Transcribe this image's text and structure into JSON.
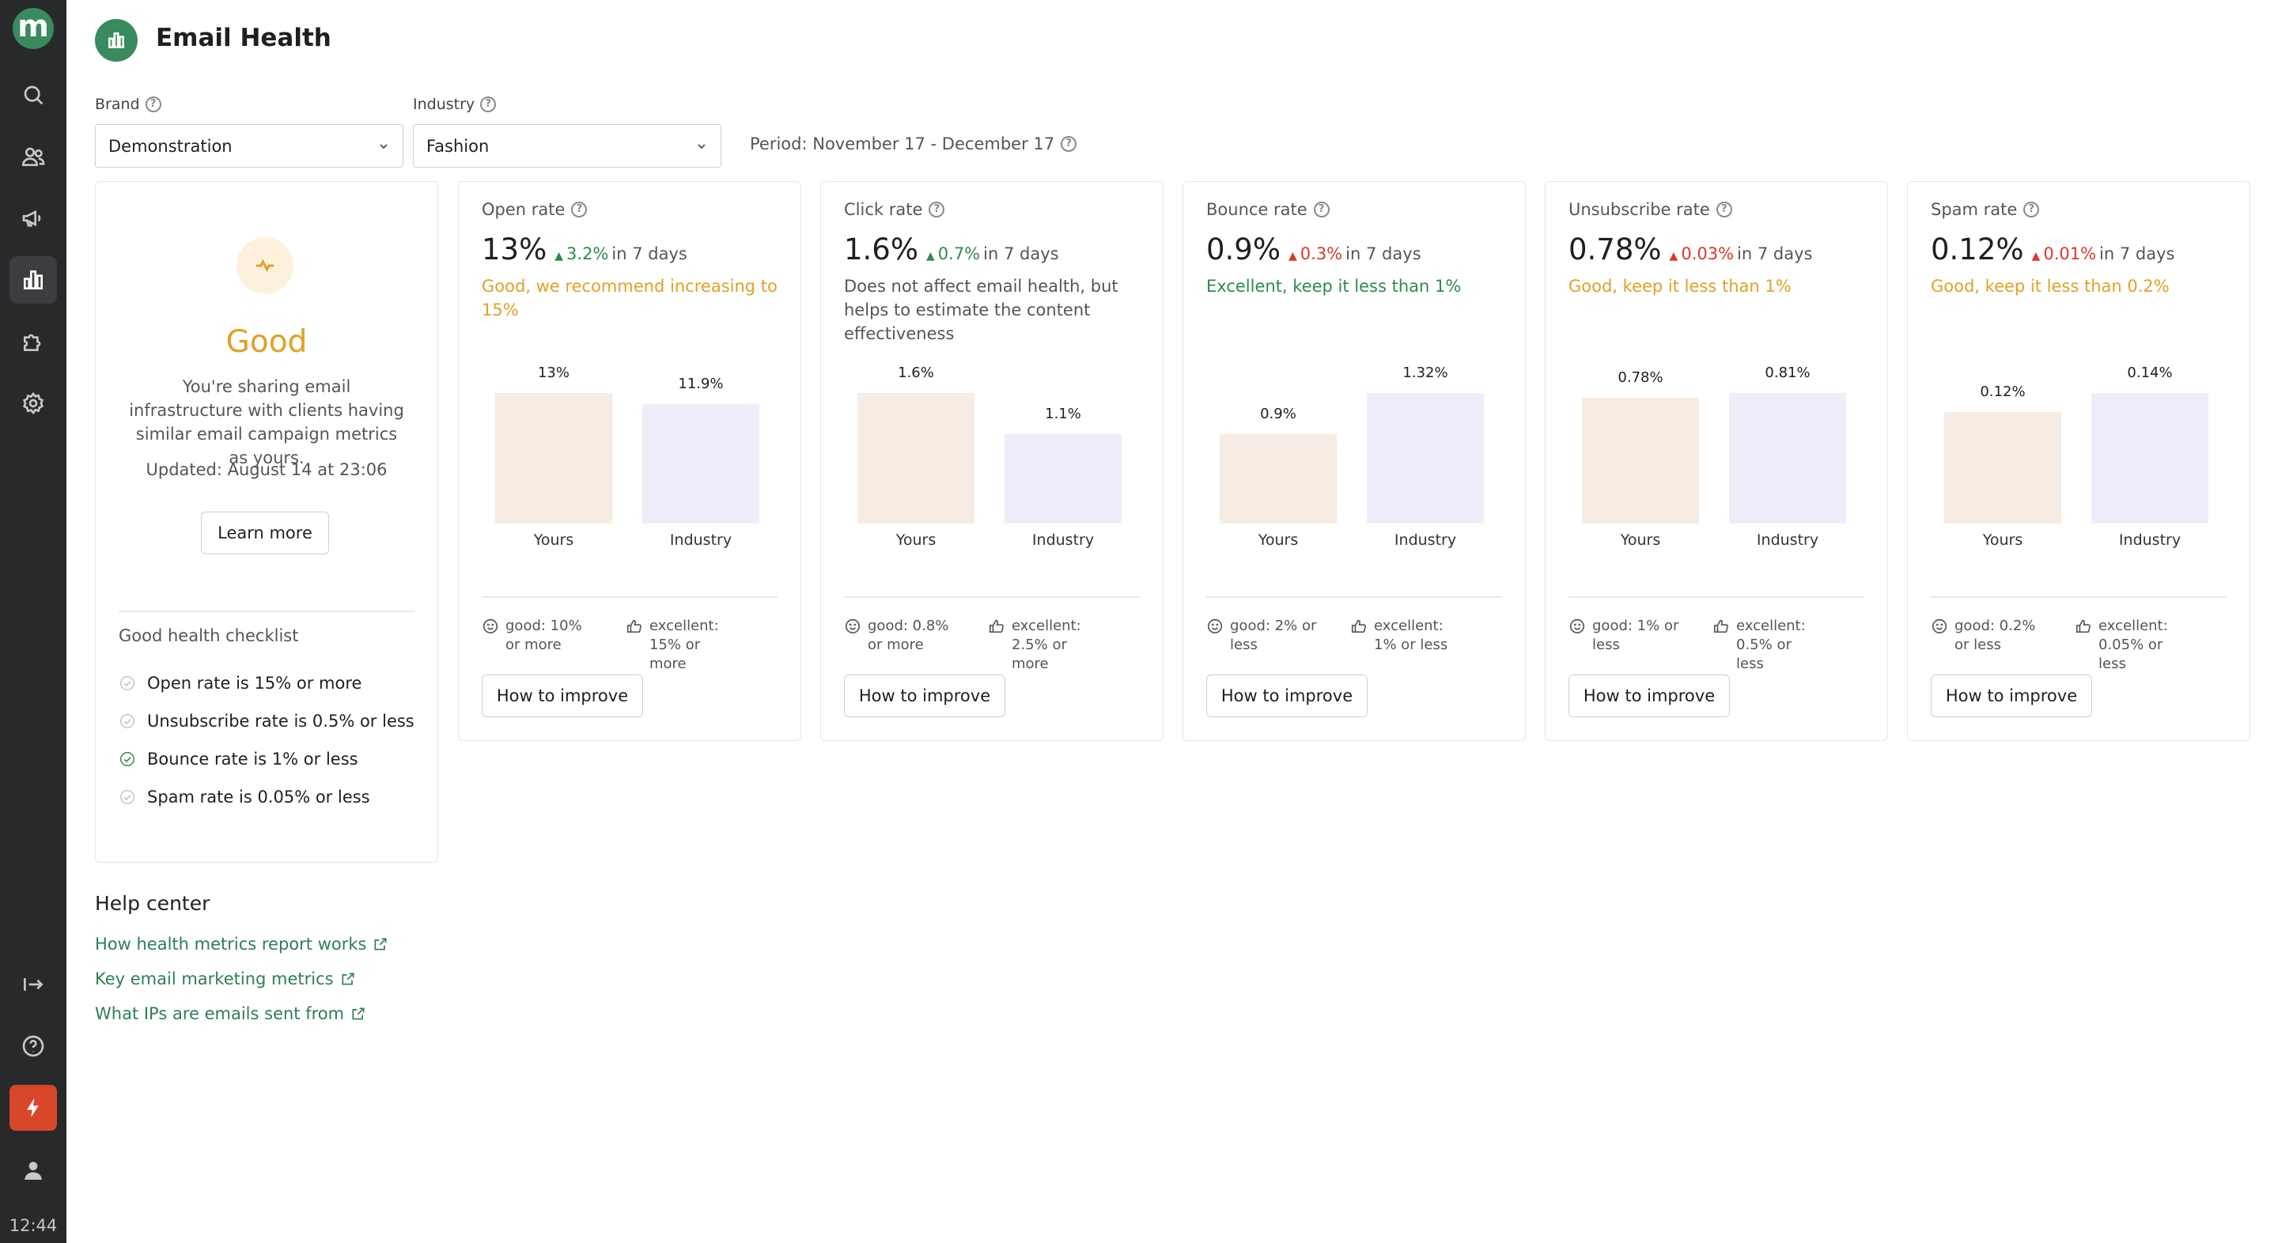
{
  "sidebar": {
    "logo_letter": "m",
    "time": "12:44"
  },
  "header": {
    "title": "Email Health"
  },
  "filters": {
    "brand_label": "Brand",
    "brand_value": "Demonstration",
    "industry_label": "Industry",
    "industry_value": "Fashion",
    "period": "Period: November 17 - December 17"
  },
  "summary": {
    "status": "Good",
    "description": "You're sharing email infrastructure with clients having similar email campaign metrics as yours.",
    "updated": "Updated: August 14 at 23:06",
    "learn_more": "Learn more",
    "checklist_title": "Good health checklist",
    "checklist": [
      {
        "label": "Open rate is 15% or more",
        "done": false
      },
      {
        "label": "Unsubscribe rate is 0.5% or less",
        "done": false
      },
      {
        "label": "Bounce rate is 1% or less",
        "done": true
      },
      {
        "label": "Spam rate is 0.05% or less",
        "done": false
      }
    ]
  },
  "metrics": [
    {
      "title": "Open rate",
      "value": "13%",
      "change": "3.2%",
      "change_direction": "up",
      "change_color": "#2e8a4d",
      "change_period": "in 7 days",
      "note": "Good, we recommend increasing to 15%",
      "note_color": "#e0a125",
      "yours": 13,
      "industry": 11.9,
      "yours_label": "13%",
      "industry_label": "11.9%",
      "good": "good: 10% or more",
      "excellent": "excellent: 15% or more"
    },
    {
      "title": "Click rate",
      "value": "1.6%",
      "change": "0.7%",
      "change_direction": "up",
      "change_color": "#2e8a4d",
      "change_period": "in 7 days",
      "note": "Does not affect email health, but helps to estimate the content effectiveness",
      "note_color": "#555555",
      "yours": 1.6,
      "industry": 1.1,
      "yours_label": "1.6%",
      "industry_label": "1.1%",
      "good": "good: 0.8% or more",
      "excellent": "excellent: 2.5% or more"
    },
    {
      "title": "Bounce rate",
      "value": "0.9%",
      "change": "0.3%",
      "change_direction": "up",
      "change_color": "#d93a2b",
      "change_period": "in 7 days",
      "note": "Excellent, keep it less than 1%",
      "note_color": "#2e8a4d",
      "yours": 0.9,
      "industry": 1.32,
      "yours_label": "0.9%",
      "industry_label": "1.32%",
      "good": "good: 2% or less",
      "excellent": "excellent: 1% or less"
    },
    {
      "title": "Unsubscribe rate",
      "value": "0.78%",
      "change": "0.03%",
      "change_direction": "up",
      "change_color": "#d93a2b",
      "change_period": "in 7 days",
      "note": "Good, keep it less than 1%",
      "note_color": "#e0a125",
      "yours": 0.78,
      "industry": 0.81,
      "yours_label": "0.78%",
      "industry_label": "0.81%",
      "good": "good: 1% or less",
      "excellent": "excellent: 0.5% or less"
    },
    {
      "title": "Spam rate",
      "value": "0.12%",
      "change": "0.01%",
      "change_direction": "up",
      "change_color": "#d93a2b",
      "change_period": "in 7 days",
      "note": "Good, keep it less than 0.2%",
      "note_color": "#e0a125",
      "yours": 0.12,
      "industry": 0.14,
      "yours_label": "0.12%",
      "industry_label": "0.14%",
      "good": "good: 0.2% or less",
      "excellent": "excellent: 0.05% or less"
    }
  ],
  "bar_labels": {
    "yours": "Yours",
    "industry": "Industry"
  },
  "improve_label": "How to improve",
  "help": {
    "title": "Help center",
    "links": [
      "How health metrics report works",
      "Key email marketing metrics",
      "What IPs are emails sent from"
    ]
  }
}
